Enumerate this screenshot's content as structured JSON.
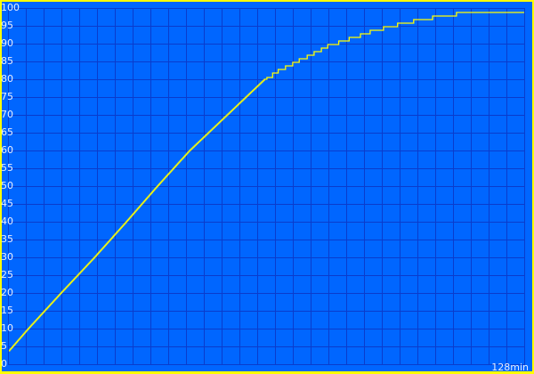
{
  "chart_data": {
    "type": "line",
    "title": "",
    "xlabel": "",
    "ylabel": "",
    "x_unit_label": "128min",
    "xlim": [
      0,
      128
    ],
    "ylim": [
      0,
      100
    ],
    "y_ticks": [
      0,
      5,
      10,
      15,
      20,
      25,
      30,
      35,
      40,
      45,
      50,
      55,
      60,
      65,
      70,
      75,
      80,
      85,
      90,
      95,
      100
    ],
    "x_grid_step": 4.414,
    "grid": true,
    "colors": {
      "background": "#0066ff",
      "grid": "#0a3ccc",
      "line": "#ffff00",
      "border": "#ffff00",
      "text": "#e8eeff"
    },
    "series": [
      {
        "points": [
          [
            0.2,
            3.75
          ],
          [
            5.0,
            10
          ],
          [
            13.1,
            20
          ],
          [
            21.4,
            30
          ],
          [
            29.3,
            40
          ],
          [
            37.0,
            50
          ],
          [
            45.0,
            60
          ],
          [
            54.3,
            70
          ],
          [
            63.6,
            80
          ],
          [
            64.2,
            80.5
          ],
          [
            65.6,
            81.75
          ],
          [
            67.0,
            82.75
          ],
          [
            68.8,
            83.75
          ],
          [
            70.6,
            84.75
          ],
          [
            72.2,
            85.75
          ],
          [
            74.2,
            86.75
          ],
          [
            75.9,
            87.75
          ],
          [
            77.7,
            88.75
          ],
          [
            79.3,
            89.75
          ],
          [
            82.0,
            90.75
          ],
          [
            84.6,
            91.75
          ],
          [
            87.4,
            92.75
          ],
          [
            89.8,
            93.75
          ],
          [
            93.1,
            94.75
          ],
          [
            96.6,
            95.75
          ],
          [
            100.6,
            96.75
          ],
          [
            105.3,
            97.75
          ],
          [
            111.2,
            98.75
          ],
          [
            128,
            98.75
          ]
        ]
      }
    ]
  }
}
